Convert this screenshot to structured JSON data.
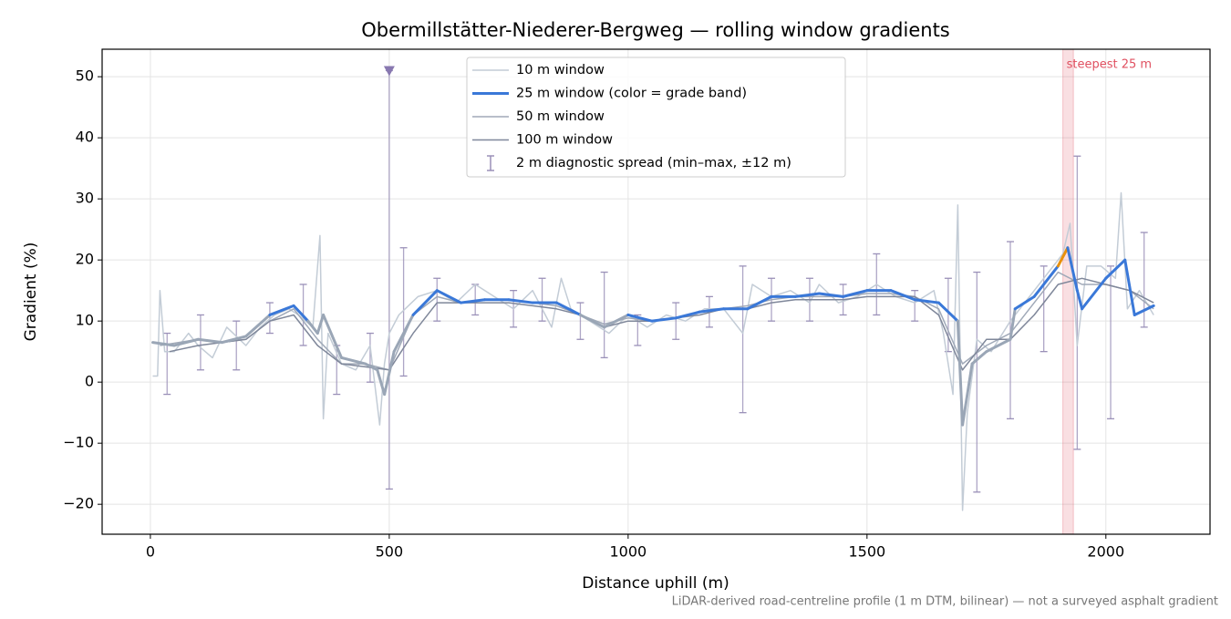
{
  "chart_data": {
    "type": "line",
    "title": "Obermillstätter-Niederer-Bergweg — rolling window gradients",
    "xlabel": "Distance uphill (m)",
    "ylabel": "Gradient (%)",
    "footnote": "LiDAR-derived road-centreline profile (1 m DTM, bilinear) — not a surveyed asphalt gradient",
    "xlim": [
      -101,
      2218
    ],
    "ylim": [
      -24.9,
      54.5
    ],
    "xticks": [
      0,
      500,
      1000,
      1500,
      2000
    ],
    "yticks": [
      {
        "value": -20,
        "label": "−20"
      },
      {
        "value": -10,
        "label": "−10"
      },
      0,
      10,
      20,
      30,
      40,
      50
    ],
    "grid": true,
    "legend": "upper center",
    "series": [
      {
        "name": "10 m window",
        "color": "#c3ccd6",
        "width": 1.5,
        "x": [
          5,
          15,
          20,
          30,
          50,
          80,
          100,
          130,
          160,
          200,
          230,
          260,
          290,
          310,
          340,
          355,
          362,
          372,
          400,
          430,
          460,
          480,
          490,
          500,
          520,
          560,
          600,
          640,
          680,
          720,
          760,
          800,
          840,
          860,
          880,
          920,
          960,
          1000,
          1040,
          1080,
          1120,
          1160,
          1200,
          1240,
          1260,
          1300,
          1340,
          1380,
          1400,
          1440,
          1480,
          1520,
          1560,
          1600,
          1640,
          1660,
          1680,
          1690,
          1700,
          1710,
          1730,
          1760,
          1800,
          1840,
          1880,
          1910,
          1925,
          1940,
          1960,
          1990,
          2020,
          2032,
          2045,
          2070,
          2100
        ],
        "values": [
          1,
          1,
          15,
          5,
          5,
          8,
          6,
          4,
          9,
          6,
          9,
          11,
          12,
          11,
          9,
          24,
          -6,
          8,
          3,
          2,
          6,
          -7,
          3,
          8,
          11,
          14,
          15,
          13,
          16,
          14,
          12,
          15,
          9,
          17,
          12,
          10,
          8,
          11,
          9,
          11,
          10,
          12,
          12,
          8,
          16,
          14,
          15,
          13,
          16,
          13,
          14,
          16,
          14,
          13,
          15,
          8,
          -2,
          29,
          -21,
          -5,
          7,
          5,
          10,
          14,
          18,
          21,
          26,
          6,
          19,
          19,
          17,
          31,
          12,
          15,
          11
        ]
      },
      {
        "name": "25 m window (color = grade band)",
        "color": "#3a78d8",
        "width": 3,
        "band_thresholds": [
          10,
          20
        ],
        "band_colors": [
          "#9aa6b6",
          "#3a78d8",
          "#e8900c"
        ],
        "x": [
          5,
          50,
          100,
          150,
          200,
          250,
          300,
          330,
          350,
          362,
          400,
          450,
          475,
          490,
          510,
          550,
          600,
          650,
          700,
          750,
          800,
          850,
          900,
          950,
          1000,
          1050,
          1100,
          1150,
          1200,
          1250,
          1300,
          1350,
          1400,
          1450,
          1500,
          1550,
          1600,
          1650,
          1690,
          1700,
          1720,
          1750,
          1800,
          1810,
          1850,
          1900,
          1920,
          1940,
          1950,
          2000,
          2040,
          2060,
          2100
        ],
        "values": [
          6.5,
          6,
          7,
          6.5,
          7.5,
          11,
          12.5,
          10,
          8,
          11,
          4,
          3,
          2,
          -2,
          5,
          11,
          15,
          13,
          13.5,
          13.5,
          13,
          13,
          11,
          9,
          11,
          10,
          10.5,
          11.5,
          12,
          12,
          14,
          14,
          14.5,
          14,
          15,
          15,
          13.5,
          13,
          10,
          -7,
          3,
          5,
          7,
          12,
          14,
          19,
          22,
          15,
          12,
          17,
          20,
          11,
          12.5
        ]
      },
      {
        "name": "50 m window",
        "color": "#a0a9b8",
        "width": 1.5,
        "x": [
          20,
          60,
          100,
          150,
          200,
          250,
          300,
          350,
          400,
          450,
          500,
          550,
          600,
          650,
          700,
          750,
          800,
          850,
          900,
          950,
          1000,
          1050,
          1100,
          1150,
          1200,
          1250,
          1300,
          1350,
          1400,
          1450,
          1500,
          1550,
          1600,
          1650,
          1700,
          1750,
          1800,
          1850,
          1900,
          1950,
          2000,
          2050,
          2100
        ],
        "values": [
          6,
          6.5,
          7,
          6.5,
          7,
          10,
          12,
          7,
          3,
          3,
          2,
          11,
          14,
          13,
          13.5,
          13.5,
          13,
          12.5,
          11,
          9.5,
          10.5,
          10,
          10.5,
          11.5,
          12,
          12.5,
          13.5,
          14,
          14,
          14,
          14.5,
          14.5,
          14,
          12,
          3,
          6,
          8,
          13,
          18,
          16,
          16,
          15,
          12
        ]
      },
      {
        "name": "100 m window",
        "color": "#7f879a",
        "width": 1.5,
        "x": [
          40,
          100,
          150,
          200,
          250,
          300,
          350,
          400,
          450,
          500,
          550,
          600,
          650,
          700,
          750,
          800,
          850,
          900,
          950,
          1000,
          1050,
          1100,
          1150,
          1200,
          1250,
          1300,
          1350,
          1400,
          1450,
          1500,
          1550,
          1600,
          1650,
          1700,
          1750,
          1800,
          1850,
          1900,
          1950,
          2000,
          2050,
          2100
        ],
        "values": [
          5,
          6,
          6.5,
          7,
          10,
          11,
          6,
          3,
          2.5,
          2,
          8,
          13,
          13,
          13,
          13,
          12.5,
          12,
          11,
          9,
          10,
          10,
          10.5,
          11,
          12,
          12,
          13,
          13.5,
          13.5,
          13.5,
          14,
          14,
          14,
          11,
          2,
          7,
          7,
          11,
          16,
          17,
          16,
          15,
          13
        ]
      }
    ],
    "errorbars": {
      "name": "2 m diagnostic spread (min–max, ±12 m)",
      "color": "#9a90b8",
      "x": [
        35,
        105,
        180,
        250,
        320,
        390,
        460,
        500,
        530,
        600,
        680,
        760,
        820,
        900,
        950,
        1020,
        1100,
        1170,
        1240,
        1300,
        1380,
        1450,
        1520,
        1600,
        1670,
        1730,
        1800,
        1870,
        1940,
        2010,
        2080
      ],
      "min": [
        -2,
        2,
        2,
        8,
        6,
        -2,
        0,
        -17.5,
        1,
        10,
        11,
        9,
        10,
        7,
        4,
        6,
        7,
        9,
        -5,
        10,
        10,
        11,
        11,
        10,
        5,
        -18,
        -6,
        5,
        -11,
        -6,
        9
      ],
      "max": [
        8,
        11,
        10,
        13,
        16,
        6,
        8,
        51,
        22,
        17,
        16,
        15,
        17,
        13,
        18,
        11,
        13,
        14,
        19,
        17,
        17,
        16,
        21,
        15,
        17,
        18,
        23,
        19,
        37,
        19,
        24.5
      ]
    },
    "outlier_markers": {
      "color": "#8878b0",
      "x": [
        500
      ],
      "values": [
        51
      ]
    },
    "highlight": {
      "x0": 1910,
      "x1": 1932,
      "label": "steepest 25 m",
      "color": "#e05060"
    }
  }
}
